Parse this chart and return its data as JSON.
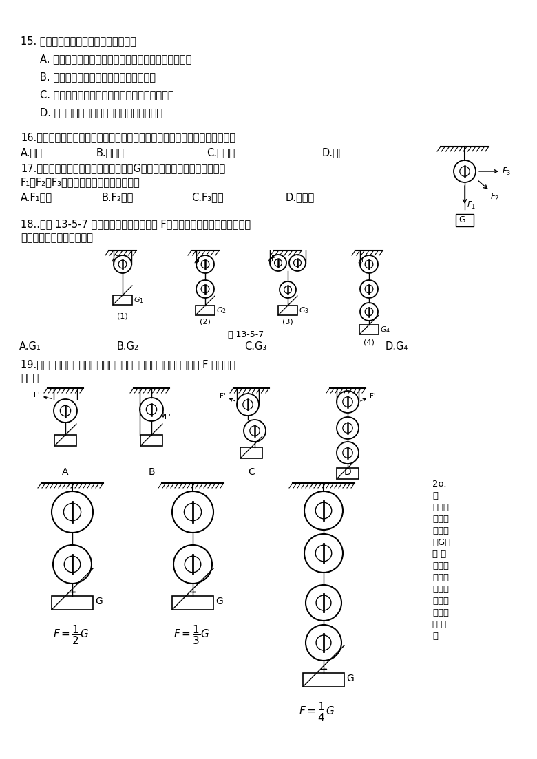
{
  "background": "#ffffff",
  "q15_text": "15. 下列几种说法中正确的是（　　）。",
  "q15_A": "A. 任何一个滑轮组都具备既省力又改变动力方向的優点",
  "q15_B": "B. 滑轮组的省力情况决定于动滑轮的个数",
  "q15_C": "C. 滑轮组的省力情况决定于承担物重的绳子段数",
  "q15_D": "D. 任何滑轮组都具有既省力又省距离的優点",
  "q16_text": "16.希望中学要安装升旗杆，下列简单机械中，适合安装在旗杆顶端的是（　）",
  "q16_A": "A.杠杆",
  "q16_B": "B.动滑轮",
  "q16_C": "C.定滑轮",
  "q16_D": "D.斜面",
  "q17_line1": "17.如图所示，通过定滑轮匀速提起重物G时，向三个方向拉动的力分别为",
  "q17_line2": "F₁、F₂、F₃，则三个力大小关系是（　）",
  "q17_A": "A.F₁最大",
  "q17_B": "B.F₂最大",
  "q17_C": "C.F₃最大",
  "q17_D": "D.一样大",
  "q18_line1": "18..如图 13-5-7 所示，人对绳的拉力都是 F，将各重物匀速提起。不计动滑",
  "q18_line2": "轮重，物重最大的是（　）",
  "q18_fig_label": "图 13-5-7",
  "q18_A": "A.G₁",
  "q18_B": "B.G₂",
  "q18_C": "C.G₃",
  "q18_D": "D.G₄",
  "q19_line1": "19.用不同机械将同样重物匀速提升，若不计摩擦和滑轮重，拉力 F 最小的是",
  "q19_line2": "（　）",
  "q20_side": [
    "2o.",
    "按",
    "要求给",
    "滑轮组",
    "继线．",
    "（G为",
    "物 体",
    "重，不",
    "考虑摩",
    "擦及动",
    "滑轮、",
    "绳子的",
    "重 力",
    "）"
  ]
}
